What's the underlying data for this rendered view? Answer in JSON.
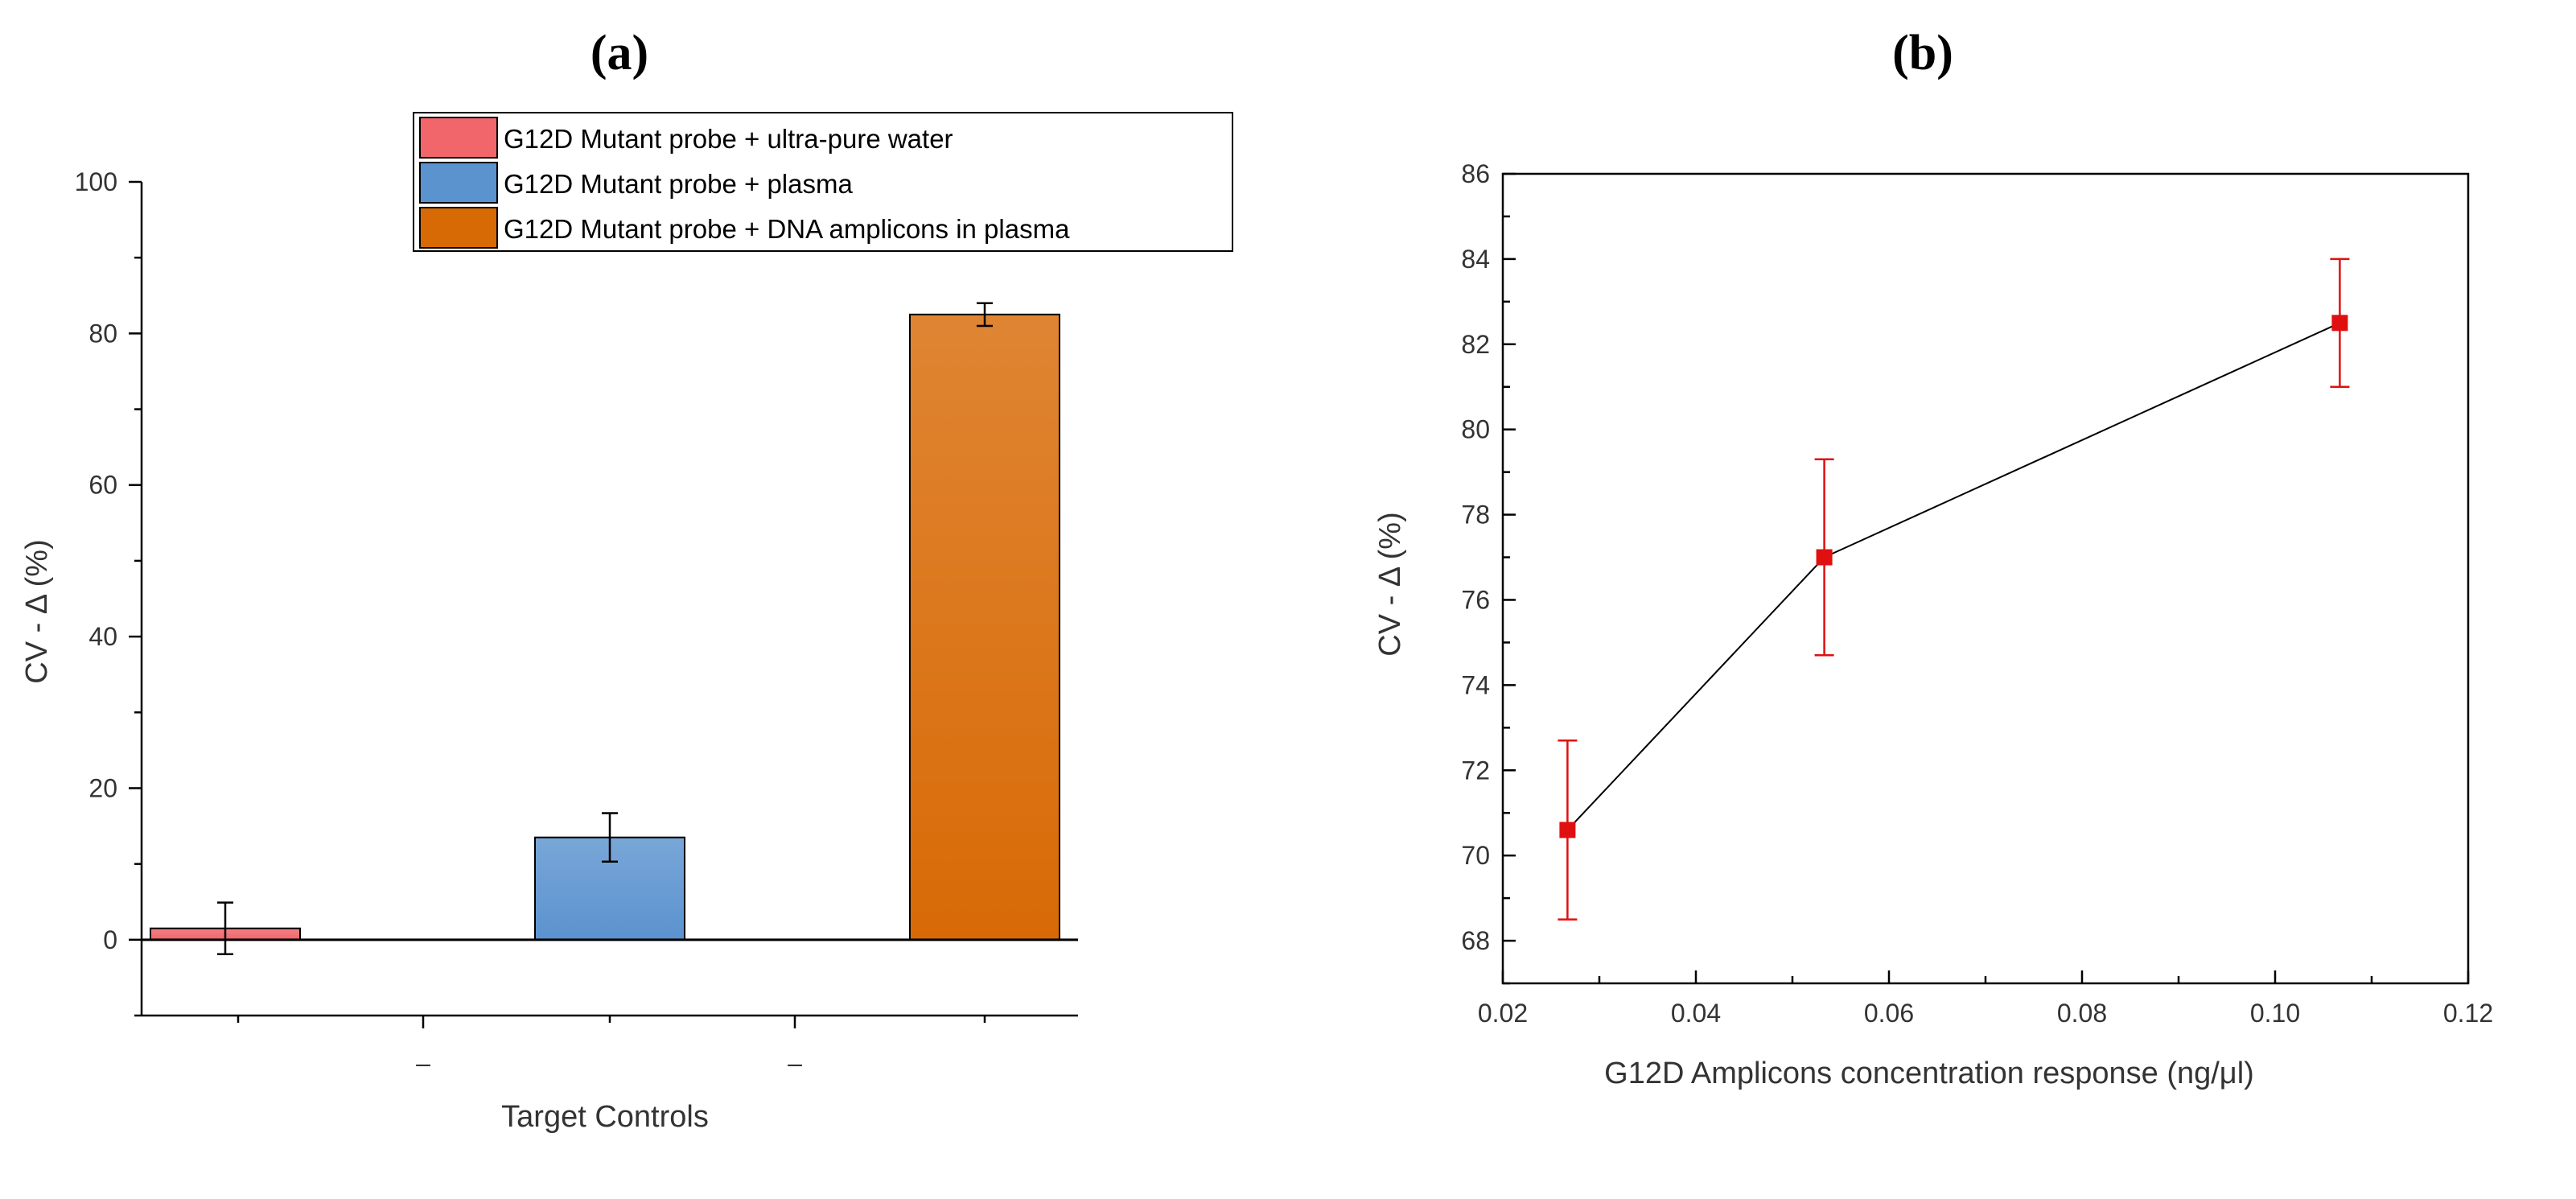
{
  "chart_data": [
    {
      "panel_label": "(a)",
      "type": "bar",
      "title": "",
      "xlabel": "Target Controls",
      "ylabel": "CV - Δ (%)",
      "ylim": [
        -10,
        100
      ],
      "yticks": [
        0,
        20,
        40,
        60,
        80,
        100
      ],
      "xtick_labels": [
        "–",
        "–"
      ],
      "legend_position": "top-right",
      "grid": false,
      "series": [
        {
          "name": "G12D Mutant probe + ultra-pure water",
          "value": 1.5,
          "error": 3.4,
          "color": "#f0666b"
        },
        {
          "name": "G12D Mutant probe + plasma",
          "value": 13.5,
          "error": 3.2,
          "color": "#5b93cf"
        },
        {
          "name": "G12D Mutant probe + DNA amplicons in plasma",
          "value": 82.5,
          "error": 1.5,
          "color": "#d86a06"
        }
      ]
    },
    {
      "panel_label": "(b)",
      "type": "line",
      "title": "",
      "xlabel": "G12D  Amplicons concentration response (ng/μl)",
      "ylabel": "CV - Δ (%)",
      "xlim": [
        0.02,
        0.12
      ],
      "ylim": [
        67,
        86
      ],
      "xticks": [
        0.02,
        0.04,
        0.06,
        0.08,
        0.1,
        0.12
      ],
      "xtick_labels": [
        "0.02",
        "0.04",
        "0.06",
        "0.08",
        "0.10",
        "0.12"
      ],
      "yticks": [
        68,
        70,
        72,
        74,
        76,
        78,
        80,
        82,
        84,
        86
      ],
      "grid": false,
      "series": [
        {
          "name": "CV - Δ",
          "color": "#e01010",
          "x": [
            0.0267,
            0.0533,
            0.1067
          ],
          "y": [
            70.6,
            77.0,
            82.5
          ],
          "error": [
            2.1,
            2.3,
            1.5
          ]
        }
      ]
    }
  ]
}
